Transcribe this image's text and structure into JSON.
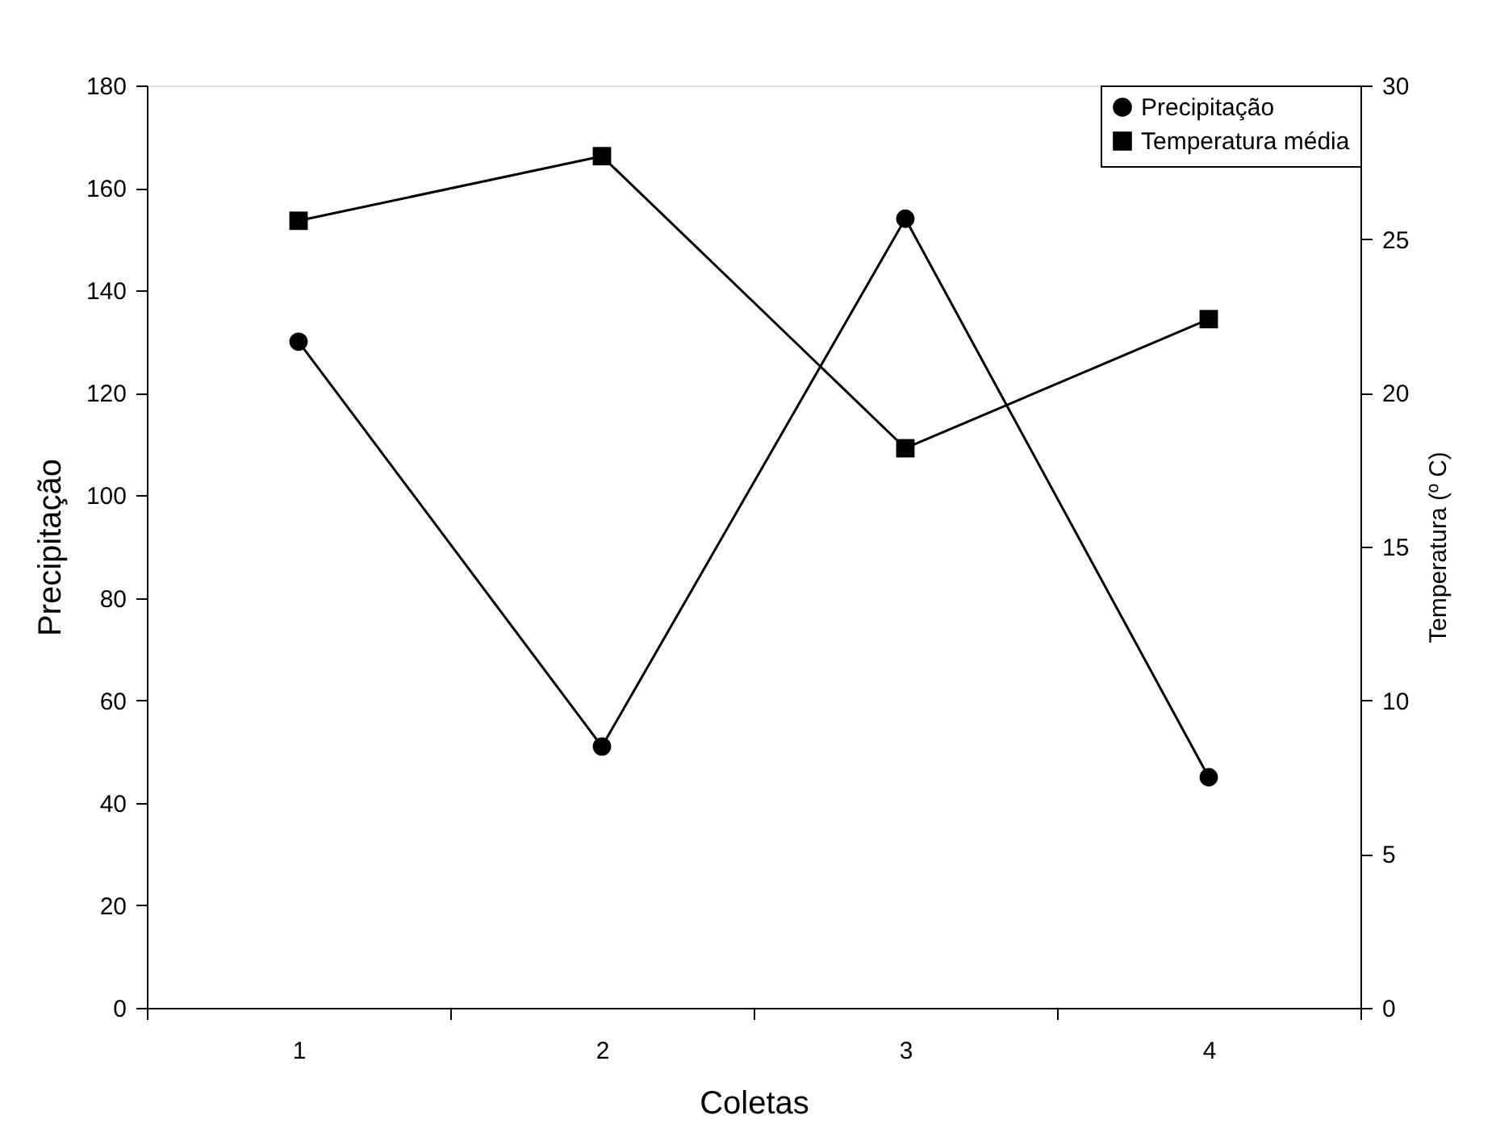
{
  "chart_data": {
    "type": "line",
    "xlabel": "Coletas",
    "ylabel": "Precipitação",
    "y2label": "Temperatura (º C)",
    "categories": [
      "1",
      "2",
      "3",
      "4"
    ],
    "series": [
      {
        "name": "Precipitação",
        "color": "#000000",
        "marker": "circle",
        "values": [
          130,
          51,
          154,
          45
        ]
      },
      {
        "name": "Temperatura média",
        "color": "#000000",
        "marker": "square",
        "axis": "y2",
        "values": [
          25.6,
          27.7,
          18.2,
          22.4
        ]
      }
    ],
    "ylim": [
      0,
      180
    ],
    "yticks": [
      0,
      20,
      40,
      60,
      80,
      100,
      120,
      140,
      160,
      180
    ],
    "y2lim": [
      0,
      30
    ],
    "y2ticks": [
      0,
      5,
      10,
      15,
      20,
      25,
      30
    ],
    "grid": false,
    "legend": "top right",
    "line_style": "solid"
  }
}
